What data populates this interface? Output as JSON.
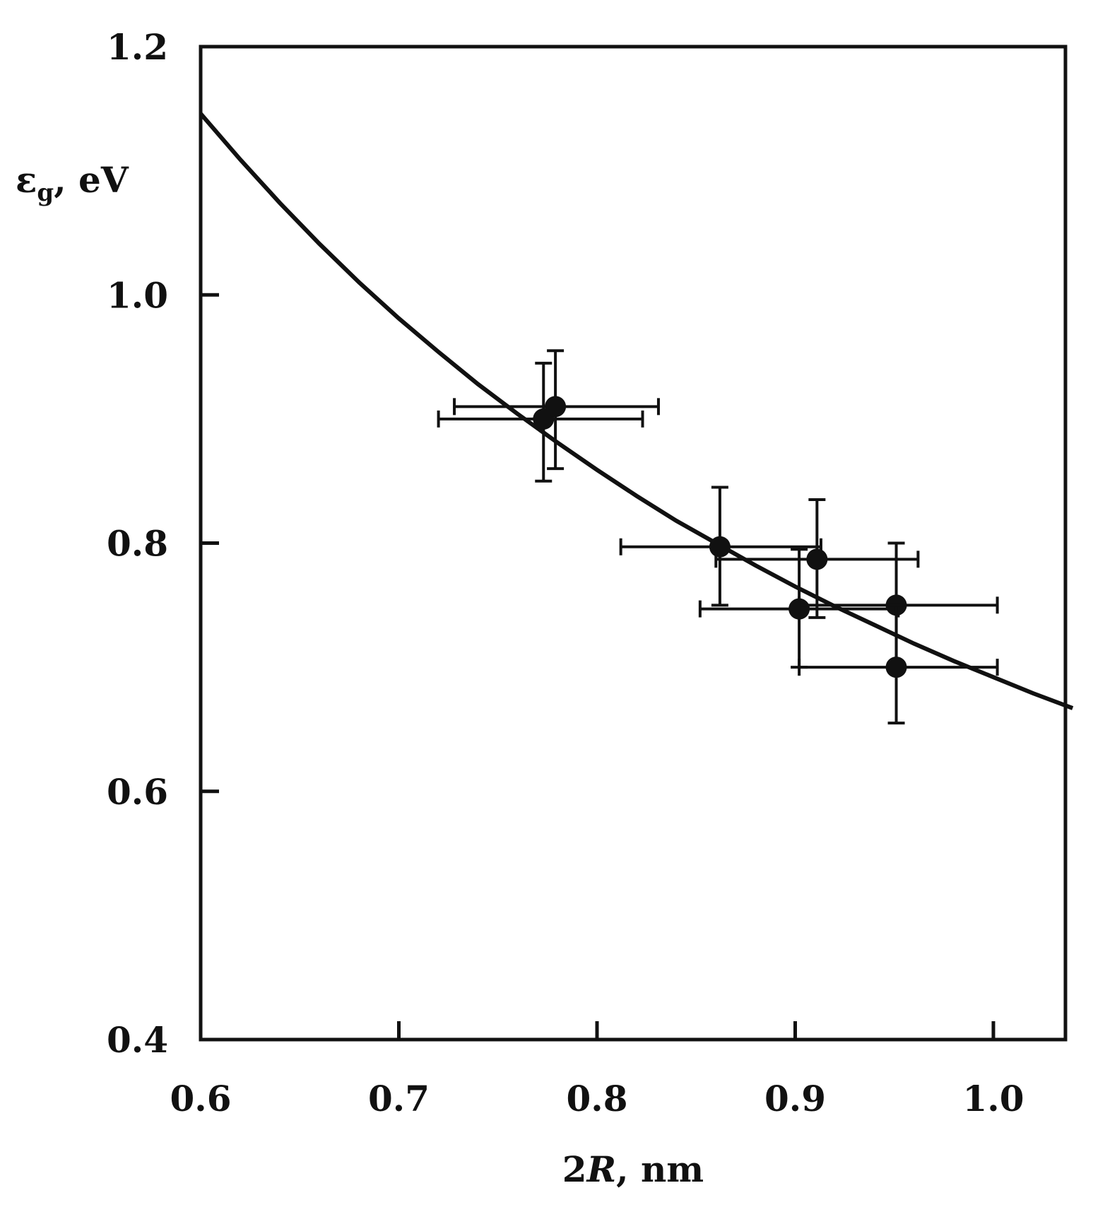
{
  "chart_data": {
    "type": "scatter",
    "title": "",
    "xlabel": "2R, nm",
    "ylabel": "εg, eV",
    "ylabel_main": "ε",
    "ylabel_sub": "g",
    "ylabel_rest": ", eV",
    "xlabel_main": "2",
    "xlabel_italic": "R",
    "xlabel_rest": ", nm",
    "xlim": [
      0.6,
      1.04
    ],
    "ylim": [
      0.4,
      1.2
    ],
    "xticks": [
      0.6,
      0.7,
      0.8,
      0.9,
      1.0
    ],
    "xtick_labels": [
      "0.6",
      "0.7",
      "0.8",
      "0.9",
      "1.0"
    ],
    "yticks": [
      0.4,
      0.6,
      0.8,
      1.0,
      1.2
    ],
    "ytick_labels": [
      "0.4",
      "0.6",
      "0.8",
      "1.0",
      "1.2"
    ],
    "grid": false,
    "series": [
      {
        "kind": "points_with_errorbars",
        "points": [
          {
            "x": 0.773,
            "y": 0.9,
            "xerr": [
              0.72,
              0.823
            ],
            "yerr": [
              0.85,
              0.945
            ]
          },
          {
            "x": 0.779,
            "y": 0.91,
            "xerr": [
              0.728,
              0.831
            ],
            "yerr": [
              0.86,
              0.955
            ]
          },
          {
            "x": 0.862,
            "y": 0.797,
            "xerr": [
              0.812,
              0.913
            ],
            "yerr": [
              0.75,
              0.845
            ]
          },
          {
            "x": 0.911,
            "y": 0.787,
            "xerr": [
              0.86,
              0.962
            ],
            "yerr": [
              0.74,
              0.835
            ]
          },
          {
            "x": 0.902,
            "y": 0.747,
            "xerr": [
              0.852,
              0.952
            ],
            "yerr": [
              0.7,
              0.795
            ]
          },
          {
            "x": 0.951,
            "y": 0.75,
            "xerr": [
              0.902,
              1.002
            ],
            "yerr": [
              0.7,
              0.8
            ]
          },
          {
            "x": 0.951,
            "y": 0.7,
            "xerr": [
              0.902,
              1.002
            ],
            "yerr": [
              0.655,
              0.75
            ]
          }
        ]
      },
      {
        "kind": "curve",
        "x": [
          0.6,
          0.62,
          0.64,
          0.66,
          0.68,
          0.7,
          0.72,
          0.74,
          0.76,
          0.78,
          0.8,
          0.82,
          0.84,
          0.86,
          0.88,
          0.9,
          0.92,
          0.94,
          0.96,
          0.98,
          1.0,
          1.02,
          1.04
        ],
        "y": [
          1.146,
          1.109,
          1.074,
          1.041,
          1.01,
          0.981,
          0.954,
          0.928,
          0.904,
          0.881,
          0.859,
          0.838,
          0.818,
          0.8,
          0.782,
          0.765,
          0.749,
          0.734,
          0.719,
          0.705,
          0.692,
          0.679,
          0.667
        ]
      }
    ]
  }
}
